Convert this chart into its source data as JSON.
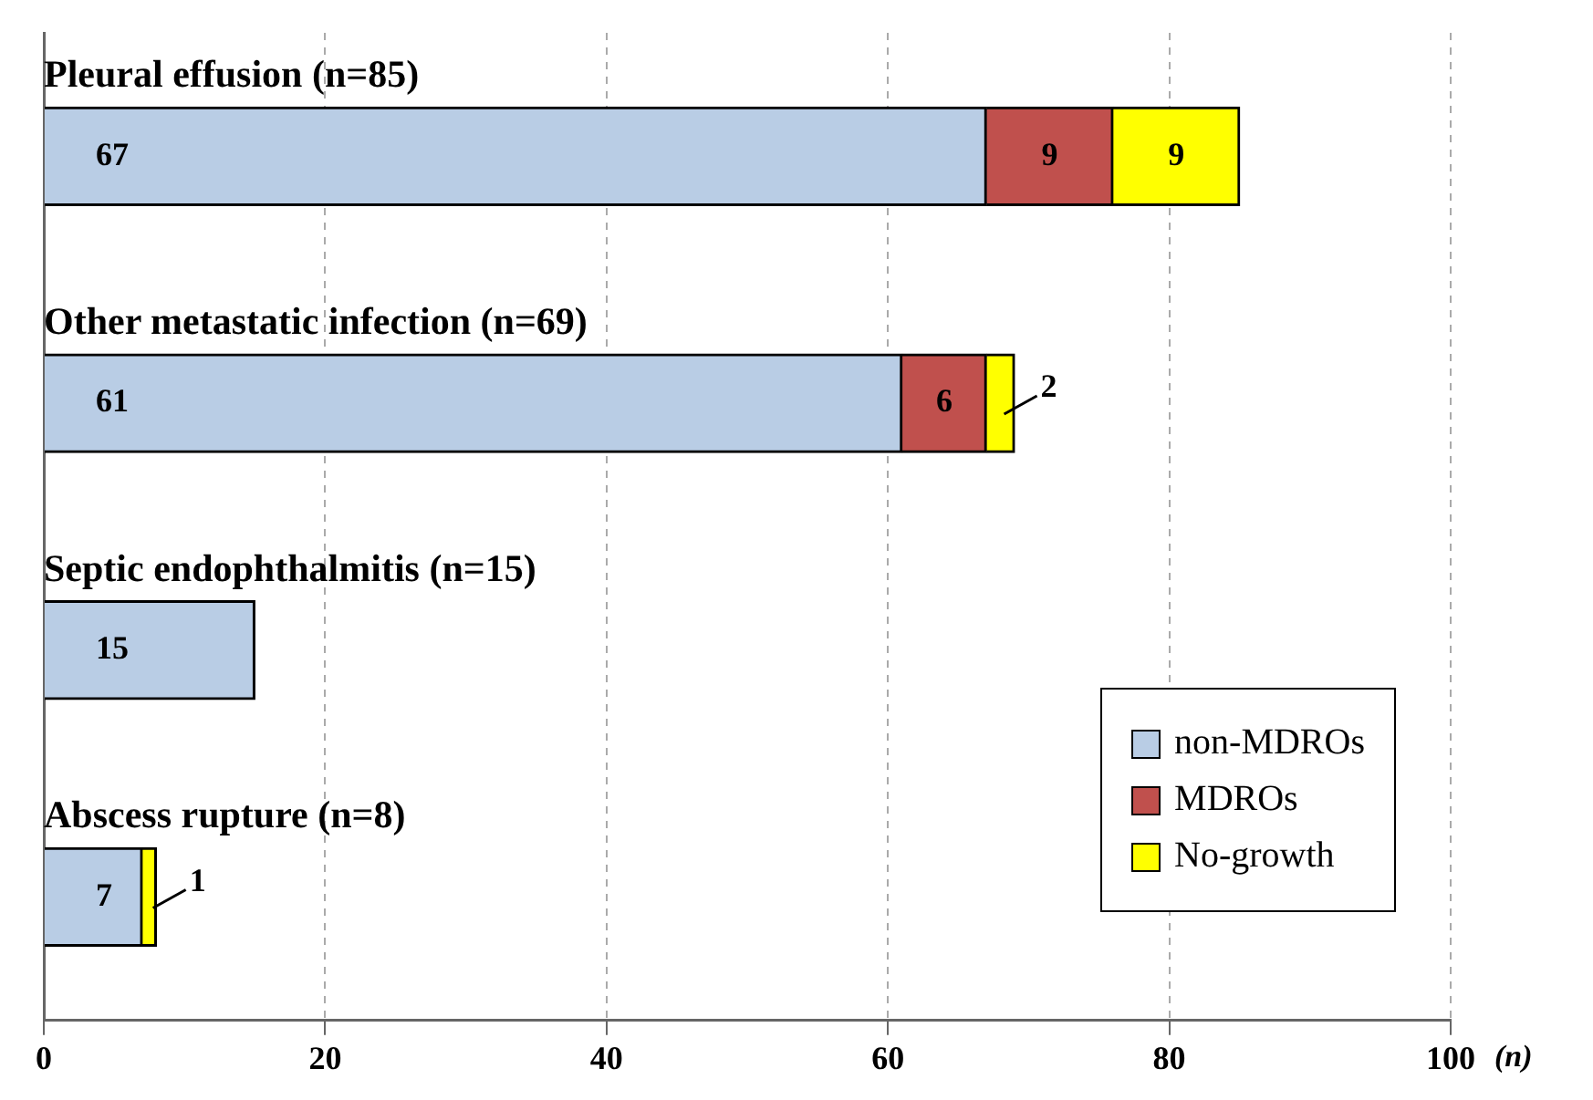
{
  "chart_data": {
    "type": "bar",
    "orientation": "horizontal",
    "stacked": true,
    "categories": [
      "Pleural effusion (n=85)",
      "Other metastatic infection (n=69)",
      "Septic endophthalmitis (n=15)",
      "Abscess rupture (n=8)"
    ],
    "series": [
      {
        "name": "non-MDROs",
        "color": "#b9cde5",
        "values": [
          67,
          61,
          15,
          7
        ],
        "value_labels": [
          "67",
          "61",
          "15",
          "7"
        ]
      },
      {
        "name": "MDROs",
        "color": "#c0504d",
        "values": [
          9,
          6,
          0,
          0
        ],
        "value_labels": [
          "9",
          "6",
          null,
          null
        ]
      },
      {
        "name": "No-growth",
        "color": "#ffff00",
        "values": [
          9,
          2,
          0,
          1
        ],
        "value_labels": [
          "9",
          "2",
          null,
          "1"
        ]
      }
    ],
    "xlim": [
      0,
      100
    ],
    "xticks": [
      0,
      20,
      40,
      60,
      80,
      100
    ],
    "xlabel": "(n)",
    "grid": "x",
    "legend": "bottom right"
  }
}
